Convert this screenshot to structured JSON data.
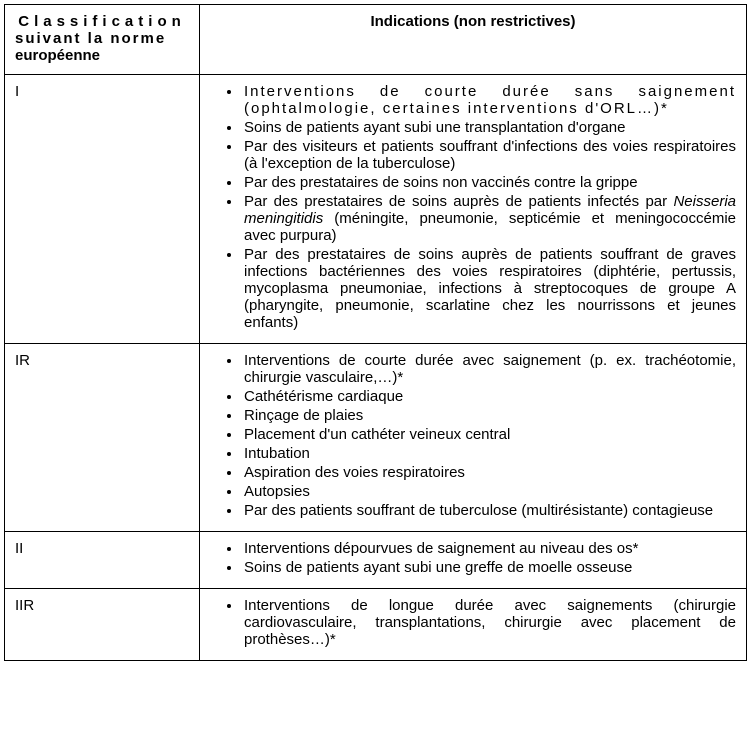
{
  "header": {
    "col1_line1": "Classification",
    "col1_line2": "suivant la norme",
    "col1_line3": "européenne",
    "col2": "Indications (non restrictives)"
  },
  "rows": {
    "r1": {
      "cls": "I",
      "items": {
        "b1": "Interventions de courte durée sans saignement (ophtalmologie, certaines interventions d'ORL…)*",
        "b2": "Soins de patients ayant subi une transplantation d'organe",
        "b3": "Par des visiteurs et patients souffrant d'infections des voies respiratoires (à l'exception de la tuberculose)",
        "b4": "Par des prestataires de soins non vaccinés contre la grippe",
        "b5a": "Par des prestataires de soins auprès de patients infectés par ",
        "b5b": "Neisseria meningitidis",
        "b5c": " (méningite, pneumonie, septicémie et meningococcémie avec purpura)",
        "b6": "Par des prestataires de soins auprès de patients souffrant de graves infections bactériennes des voies respiratoires (diphtérie, pertussis, mycoplasma pneumoniae, infections à streptocoques de groupe A (pharyngite, pneumonie, scarlatine chez les nourrissons et jeunes enfants)"
      }
    },
    "r2": {
      "cls": "IR",
      "items": {
        "b1": "Interventions de courte durée avec saignement (p. ex. trachéotomie, chirurgie vasculaire,…)*",
        "b2": "Cathétérisme cardiaque",
        "b3": "Rinçage de plaies",
        "b4": "Placement d'un cathéter veineux central",
        "b5": "Intubation",
        "b6": "Aspiration des voies respiratoires",
        "b7": "Autopsies",
        "b8": "Par des patients souffrant de tuberculose (multirésistante) contagieuse"
      }
    },
    "r3": {
      "cls": "II",
      "items": {
        "b1": "Interventions dépourvues de saignement au niveau des os*",
        "b2": "Soins de patients ayant subi une greffe de moelle osseuse"
      }
    },
    "r4": {
      "cls": "IIR",
      "items": {
        "b1": "Interventions de longue durée avec saignements (chirurgie cardiovasculaire, transplantations, chirurgie avec placement de prothèses…)*"
      }
    }
  }
}
